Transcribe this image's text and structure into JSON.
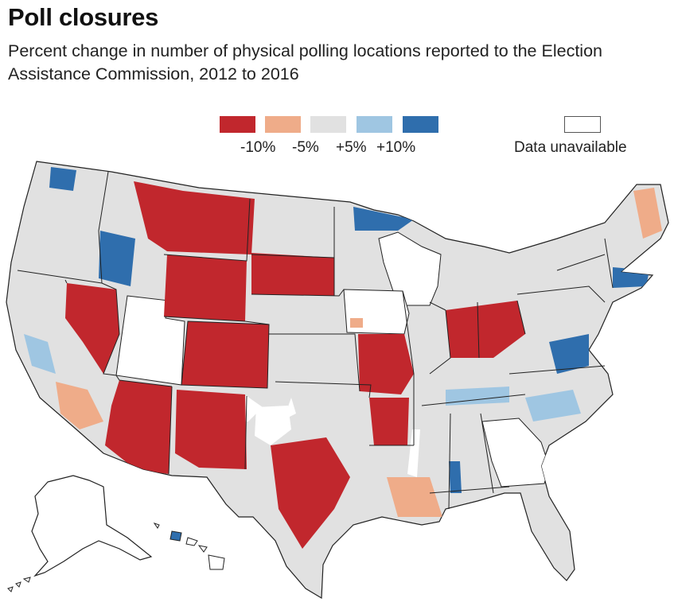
{
  "header": {
    "title": "Poll closures",
    "subtitle": "Percent change in number of physical polling locations reported to the Election Assistance Commission, 2012 to 2016"
  },
  "legend": {
    "bins": [
      {
        "label": "-10%",
        "color": "#c1272d"
      },
      {
        "label": "-5%",
        "color": "#efac89"
      },
      {
        "label": "",
        "color": "#e1e1e1"
      },
      {
        "label": "+5%",
        "color": "#9fc6e2"
      },
      {
        "label": "+10%",
        "color": "#2f6ead"
      }
    ],
    "unavailable_label": "Data unavailable"
  },
  "map": {
    "land_color": "#e1e1e1",
    "border_color": "#222222",
    "unavailable_color": "#ffffff",
    "decrease_color": "#c1272d",
    "slight_decrease_color": "#efac89",
    "slight_increase_color": "#9fc6e2",
    "increase_color": "#2f6ead"
  }
}
